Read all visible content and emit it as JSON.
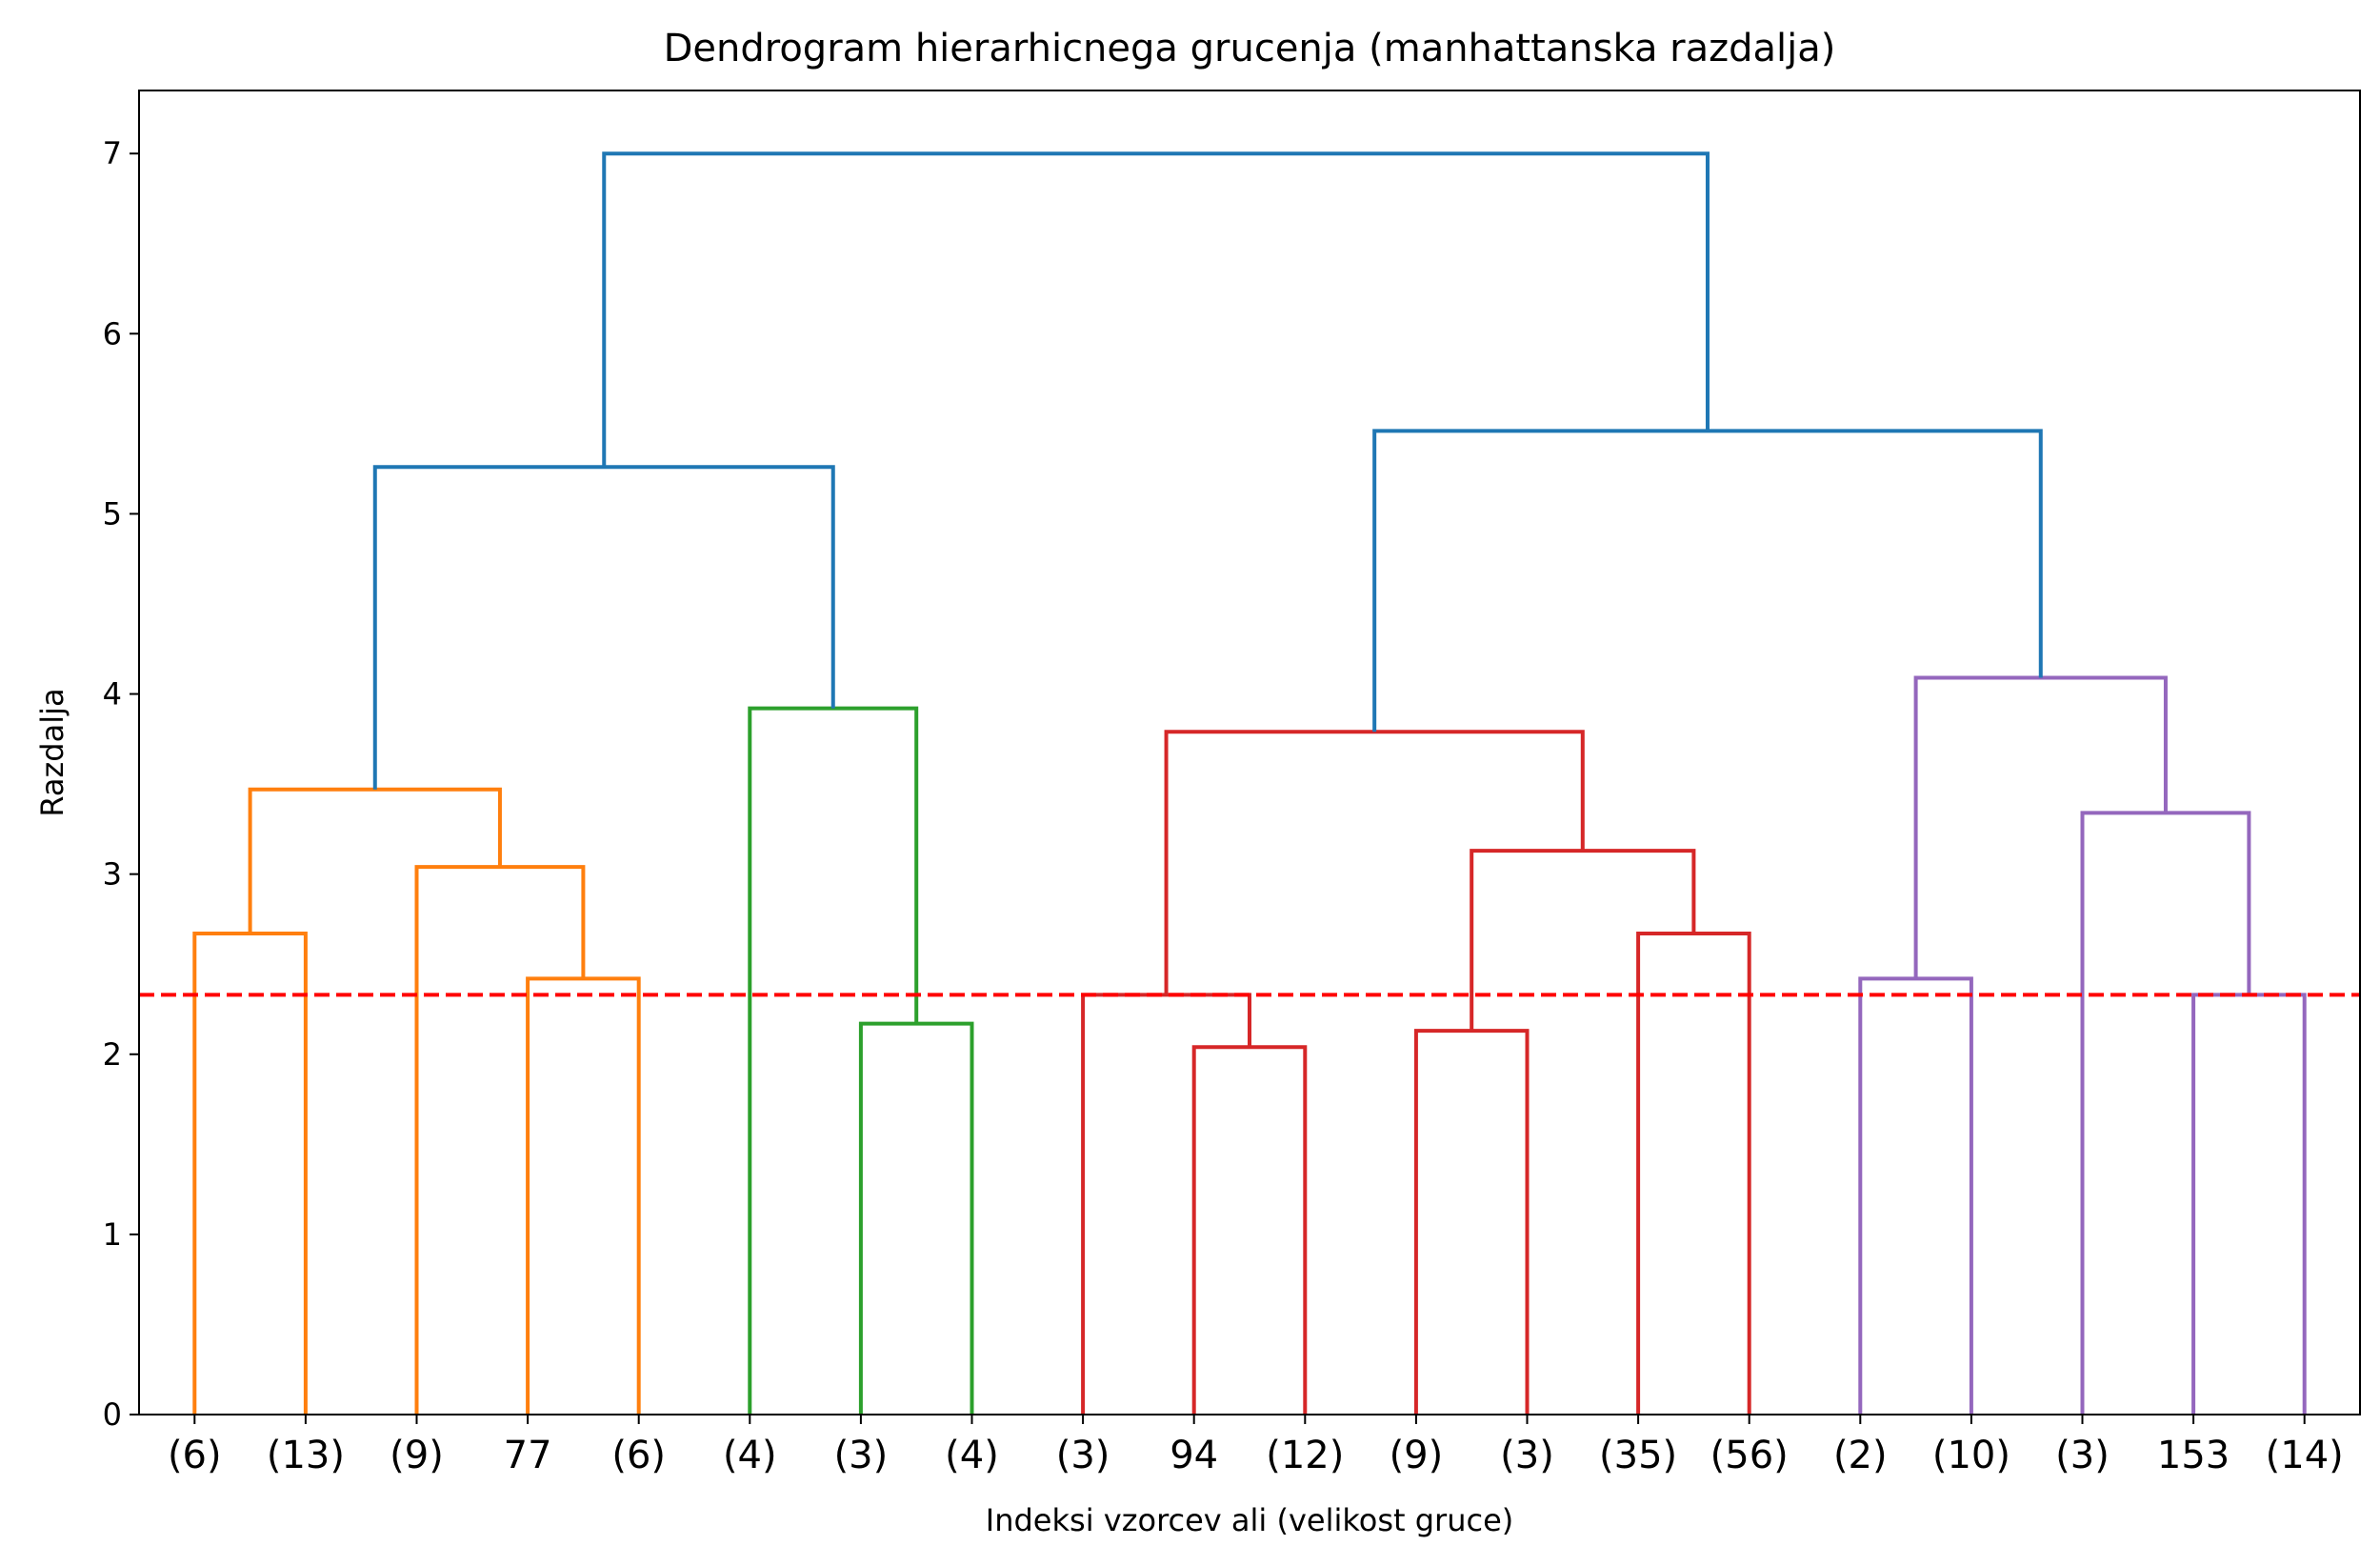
{
  "chart_data": {
    "type": "dendrogram",
    "title": "Dendrogram hierarhicnega grucenja (manhattanska razdalja)",
    "xlabel": "Indeksi vzorcev ali (velikost gruce)",
    "ylabel": "Razdalja",
    "ylim": [
      0,
      7.35
    ],
    "yticks": [
      "0",
      "1",
      "2",
      "3",
      "4",
      "5",
      "6",
      "7"
    ],
    "leaves": [
      "(6)",
      "(13)",
      "(9)",
      "77",
      "(6)",
      "(4)",
      "(3)",
      "(4)",
      "(3)",
      "94",
      "(12)",
      "(9)",
      "(3)",
      "(35)",
      "(56)",
      "(2)",
      "(10)",
      "(3)",
      "153",
      "(14)"
    ],
    "cut_line": {
      "y": 2.33,
      "color": "#ff0000",
      "style": "dashed"
    },
    "colors": {
      "above_cut": "#1f77b4",
      "cluster1": "#ff7f0e",
      "cluster2": "#2ca02c",
      "cluster3": "#d62728",
      "cluster4": "#9467bd"
    },
    "links": [
      {
        "left": [
          0,
          0
        ],
        "right": [
          1,
          0
        ],
        "height": 2.67,
        "color": "#ff7f0e"
      },
      {
        "left": [
          3,
          0
        ],
        "right": [
          4,
          0
        ],
        "height": 2.42,
        "color": "#ff7f0e"
      },
      {
        "left": [
          2,
          0
        ],
        "right": [
          3.5,
          2.42
        ],
        "height": 3.04,
        "color": "#ff7f0e"
      },
      {
        "left": [
          0.5,
          2.67
        ],
        "right": [
          2.75,
          3.04
        ],
        "height": 3.47,
        "color": "#ff7f0e"
      },
      {
        "left": [
          6,
          0
        ],
        "right": [
          7,
          0
        ],
        "height": 2.17,
        "color": "#2ca02c"
      },
      {
        "left": [
          5,
          0
        ],
        "right": [
          6.5,
          2.17
        ],
        "height": 3.92,
        "color": "#2ca02c"
      },
      {
        "left": [
          1.625,
          3.47
        ],
        "right": [
          5.75,
          3.92
        ],
        "height": 5.26,
        "color": "#1f77b4"
      },
      {
        "left": [
          9,
          0
        ],
        "right": [
          10,
          0
        ],
        "height": 2.04,
        "color": "#d62728"
      },
      {
        "left": [
          8,
          0
        ],
        "right": [
          9.5,
          2.04
        ],
        "height": 2.33,
        "color": "#d62728"
      },
      {
        "left": [
          11,
          0
        ],
        "right": [
          12,
          0
        ],
        "height": 2.13,
        "color": "#d62728"
      },
      {
        "left": [
          13,
          0
        ],
        "right": [
          14,
          0
        ],
        "height": 2.67,
        "color": "#d62728"
      },
      {
        "left": [
          11.5,
          2.13
        ],
        "right": [
          13.5,
          2.67
        ],
        "height": 3.13,
        "color": "#d62728"
      },
      {
        "left": [
          8.75,
          2.33
        ],
        "right": [
          12.5,
          3.13
        ],
        "height": 3.79,
        "color": "#d62728"
      },
      {
        "left": [
          15,
          0
        ],
        "right": [
          16,
          0
        ],
        "height": 2.42,
        "color": "#9467bd"
      },
      {
        "left": [
          18,
          0
        ],
        "right": [
          19,
          0
        ],
        "height": 2.33,
        "color": "#9467bd"
      },
      {
        "left": [
          17,
          0
        ],
        "right": [
          18.5,
          2.33
        ],
        "height": 3.34,
        "color": "#9467bd"
      },
      {
        "left": [
          15.5,
          2.42
        ],
        "right": [
          17.75,
          3.34
        ],
        "height": 4.09,
        "color": "#9467bd"
      },
      {
        "left": [
          10.625,
          3.79
        ],
        "right": [
          16.625,
          4.09
        ],
        "height": 5.46,
        "color": "#1f77b4"
      },
      {
        "left": [
          3.6875,
          5.26
        ],
        "right": [
          13.625,
          5.46
        ],
        "height": 7.0,
        "color": "#1f77b4"
      }
    ]
  }
}
